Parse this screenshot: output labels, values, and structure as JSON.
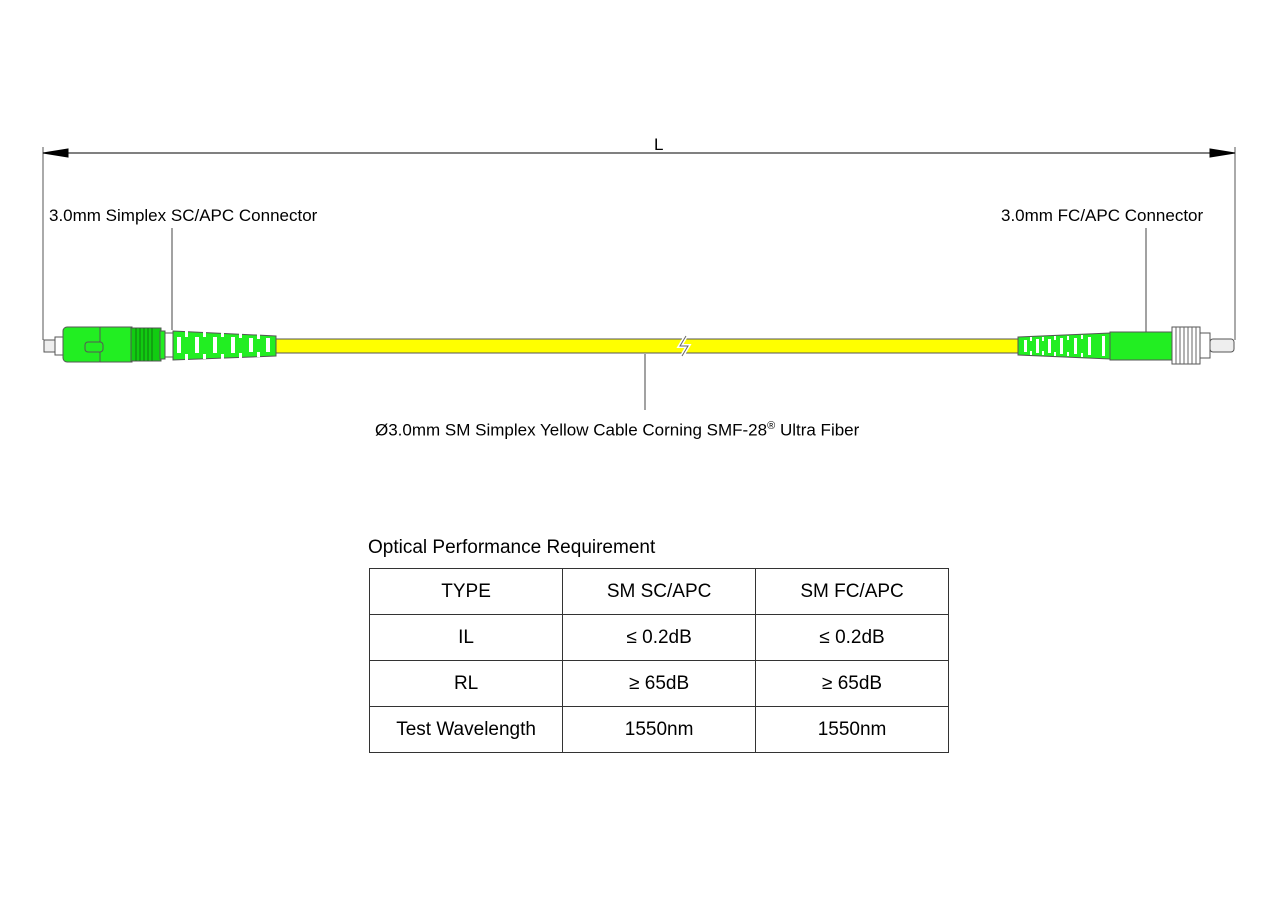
{
  "dimension_label": "L",
  "left_connector_label": "3.0mm Simplex SC/APC Connector",
  "right_connector_label": "3.0mm FC/APC Connector",
  "cable_label": {
    "main": "Ø3.0mm SM Simplex Yellow Cable  Corning SMF-28",
    "sup": "®",
    "tail": " Ultra Fiber"
  },
  "colors": {
    "connector": "#22ee22",
    "cable": "#ffff00"
  },
  "table": {
    "title": "Optical Performance Requirement",
    "rows": [
      [
        "TYPE",
        "SM SC/APC",
        "SM FC/APC"
      ],
      [
        "IL",
        "≤ 0.2dB",
        "≤ 0.2dB"
      ],
      [
        "RL",
        "≥ 65dB",
        "≥ 65dB"
      ],
      [
        "Test Wavelength",
        "1550nm",
        "1550nm"
      ]
    ]
  }
}
